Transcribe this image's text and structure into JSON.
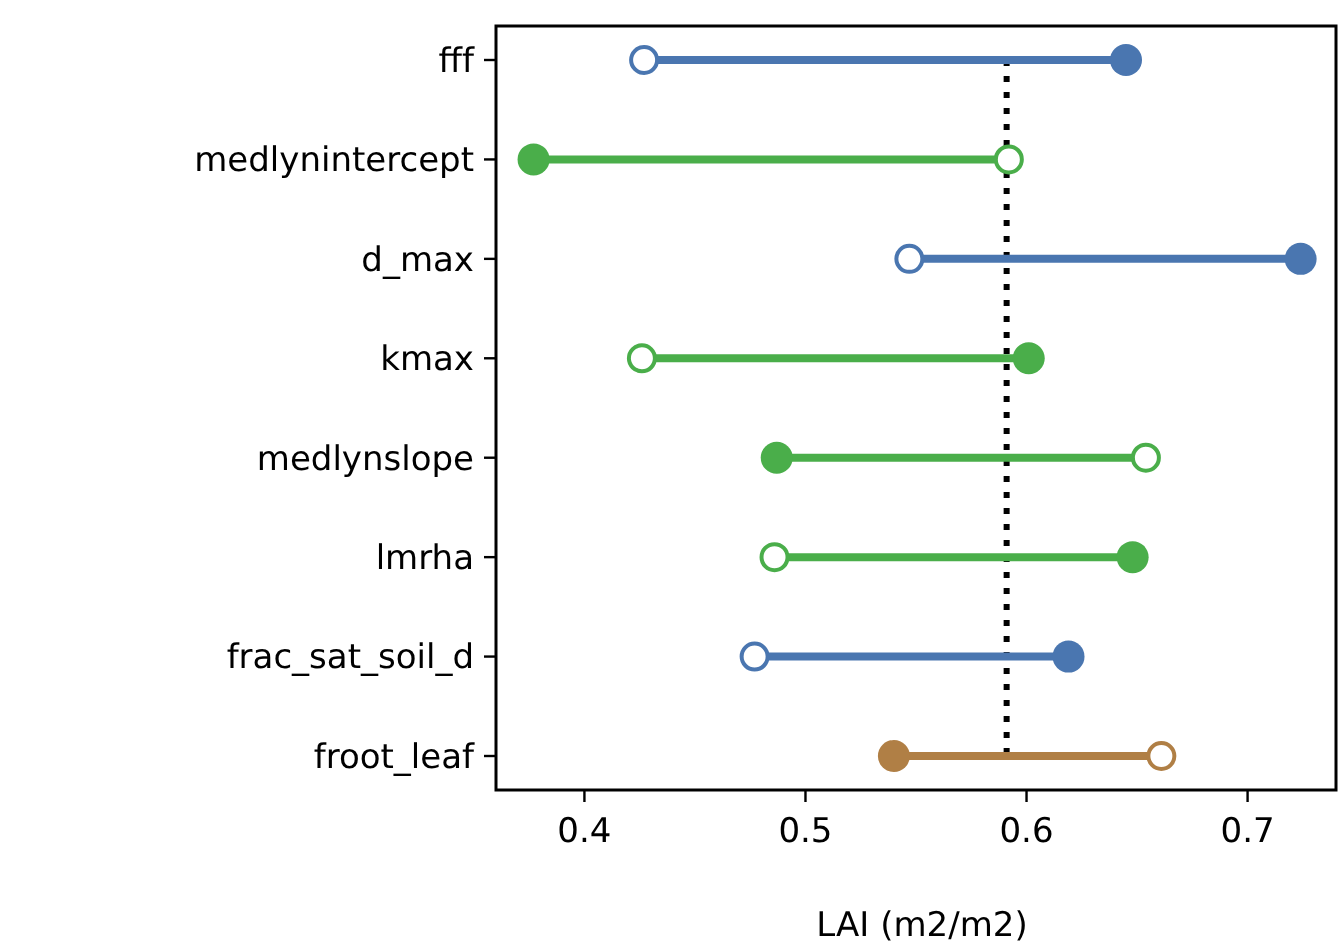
{
  "chart_data": {
    "type": "scatter",
    "orientation": "horizontal",
    "xlabel": "LAI (m2/m2)",
    "categories": [
      "fff",
      "medlynintercept",
      "d_max",
      "kmax",
      "medlynslope",
      "lmrha",
      "frac_sat_soil_d",
      "froot_leaf"
    ],
    "series": [
      {
        "marker": "circle",
        "colors": [
          "#4a76b0",
          "#4aae4a",
          "#4a76b0",
          "#4aae4a",
          "#4aae4a",
          "#4aae4a",
          "#4a76b0",
          "#b07f45"
        ],
        "values": [
          0.427,
          0.592,
          0.547,
          0.426,
          0.654,
          0.486,
          0.477,
          0.661
        ]
      },
      {
        "marker": "circle",
        "colors": [
          "#4a76b0",
          "#4aae4a",
          "#4a76b0",
          "#4aae4a",
          "#4aae4a",
          "#4aae4a",
          "#4a76b0",
          "#b07f45"
        ],
        "values": [
          0.645,
          0.377,
          0.724,
          0.601,
          0.487,
          0.648,
          0.619,
          0.54
        ]
      }
    ],
    "xlim": [
      0.36,
      0.74
    ],
    "xticks": [
      0.4,
      0.5,
      0.6,
      0.7
    ],
    "ref_lines": [
      {
        "axis": "x",
        "value": 0.591,
        "color": "#000000",
        "line_style": "dotted"
      }
    ]
  }
}
